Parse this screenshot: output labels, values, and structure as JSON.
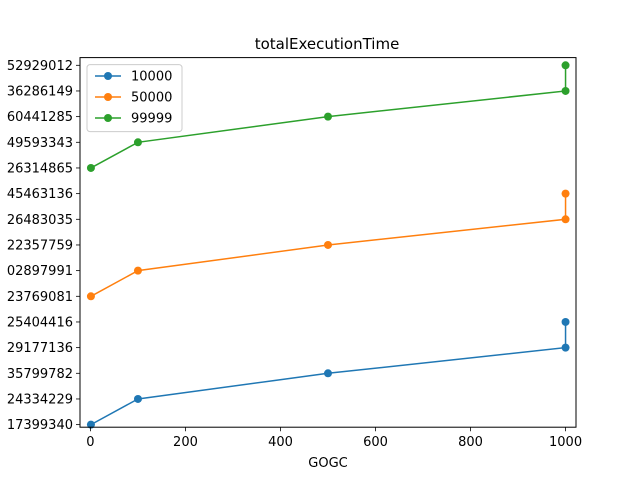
{
  "chart_data": {
    "type": "line",
    "title": "totalExecutionTime",
    "xlabel": "GOGC",
    "ylabel": "",
    "xlim": [
      -22,
      1022
    ],
    "x_ticks": [
      0,
      200,
      400,
      600,
      800,
      1000
    ],
    "y_category_order": [
      "17399340",
      "24334229",
      "35799782",
      "29177136",
      "25404416",
      "23769081",
      "02897991",
      "22357759",
      "26483035",
      "45463136",
      "26314865",
      "49593343",
      "60441285",
      "36286149",
      "52929012"
    ],
    "legend_position": "upper left",
    "grid": false,
    "series": [
      {
        "name": "10000",
        "color": "#1f77b4",
        "points": [
          {
            "x": 1,
            "y": "17399340"
          },
          {
            "x": 100,
            "y": "24334229"
          },
          {
            "x": 500,
            "y": "35799782"
          },
          {
            "x": 1000,
            "y": "29177136"
          },
          {
            "x": 1000,
            "y": "25404416"
          }
        ]
      },
      {
        "name": "50000",
        "color": "#ff7f0e",
        "points": [
          {
            "x": 1,
            "y": "23769081"
          },
          {
            "x": 100,
            "y": "02897991"
          },
          {
            "x": 500,
            "y": "22357759"
          },
          {
            "x": 1000,
            "y": "26483035"
          },
          {
            "x": 1000,
            "y": "45463136"
          }
        ]
      },
      {
        "name": "99999",
        "color": "#2ca02c",
        "points": [
          {
            "x": 1,
            "y": "26314865"
          },
          {
            "x": 100,
            "y": "49593343"
          },
          {
            "x": 500,
            "y": "60441285"
          },
          {
            "x": 1000,
            "y": "36286149"
          },
          {
            "x": 1000,
            "y": "52929012"
          }
        ]
      }
    ]
  }
}
